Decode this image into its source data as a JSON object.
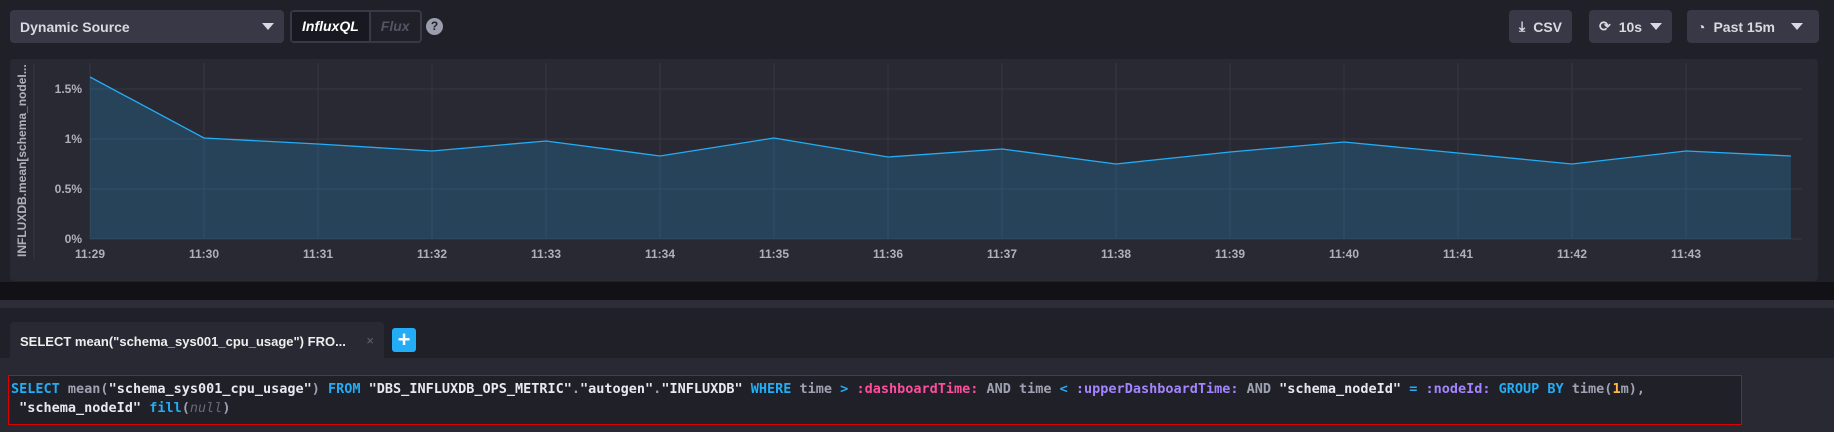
{
  "toolbar": {
    "source": "Dynamic Source",
    "languages": [
      "InfluxQL",
      "Flux"
    ],
    "active_language": "InfluxQL",
    "help": "?",
    "csv": "CSV",
    "refresh": "10s",
    "time_range": "Past 15m"
  },
  "chart_data": {
    "type": "area",
    "ylabel": "INFLUXDB.mean[schema_nodeI...",
    "x": [
      "11:29",
      "11:30",
      "11:31",
      "11:32",
      "11:33",
      "11:34",
      "11:35",
      "11:36",
      "11:37",
      "11:38",
      "11:39",
      "11:40",
      "11:41",
      "11:42",
      "11:43",
      "11:44"
    ],
    "values": [
      1.62,
      1.01,
      0.95,
      0.88,
      0.98,
      0.83,
      1.01,
      0.82,
      0.9,
      0.75,
      0.87,
      0.97,
      0.86,
      0.75,
      0.88,
      0.83
    ],
    "yticks": [
      "0%",
      "0.5%",
      "1%",
      "1.5%"
    ],
    "xticks": [
      "11:29",
      "11:30",
      "11:31",
      "11:32",
      "11:33",
      "11:34",
      "11:35",
      "11:36",
      "11:37",
      "11:38",
      "11:39",
      "11:40",
      "11:41",
      "11:42",
      "11:43"
    ],
    "ylim": [
      0,
      1.7
    ],
    "grid": true,
    "line_color": "#22adf6"
  },
  "query_tab": {
    "label": "SELECT mean(\"schema_sys001_cpu_usage\") FRO...",
    "close": "×",
    "add": "+"
  },
  "query": {
    "t1": "SELECT",
    "t2": " mean(",
    "t3": "\"schema_sys001_cpu_usage\"",
    "t4": ") ",
    "t5": "FROM",
    "t6": " \"DBS_INFLUXDB_OPS_METRIC\"",
    "t7": ".",
    "t8": "\"autogen\"",
    "t9": ".",
    "t10": "\"INFLUXDB\"",
    "t11": "WHERE",
    "t12": " time ",
    "t13": ">",
    "t14": ":dashboardTime:",
    "t15": " AND time ",
    "t16": "<",
    "t17": ":upperDashboardTime:",
    "t18": " AND ",
    "t19": "\"schema_nodeId\"",
    "t20": "=",
    "t21": ":nodeId:",
    "t22": "GROUP BY",
    "t23": " time(",
    "t24": "1",
    "t25": "m),",
    "t26": " \"schema_nodeId\"",
    "t27": "fill",
    "t28": "(",
    "t29": "null",
    "t30": ")"
  }
}
